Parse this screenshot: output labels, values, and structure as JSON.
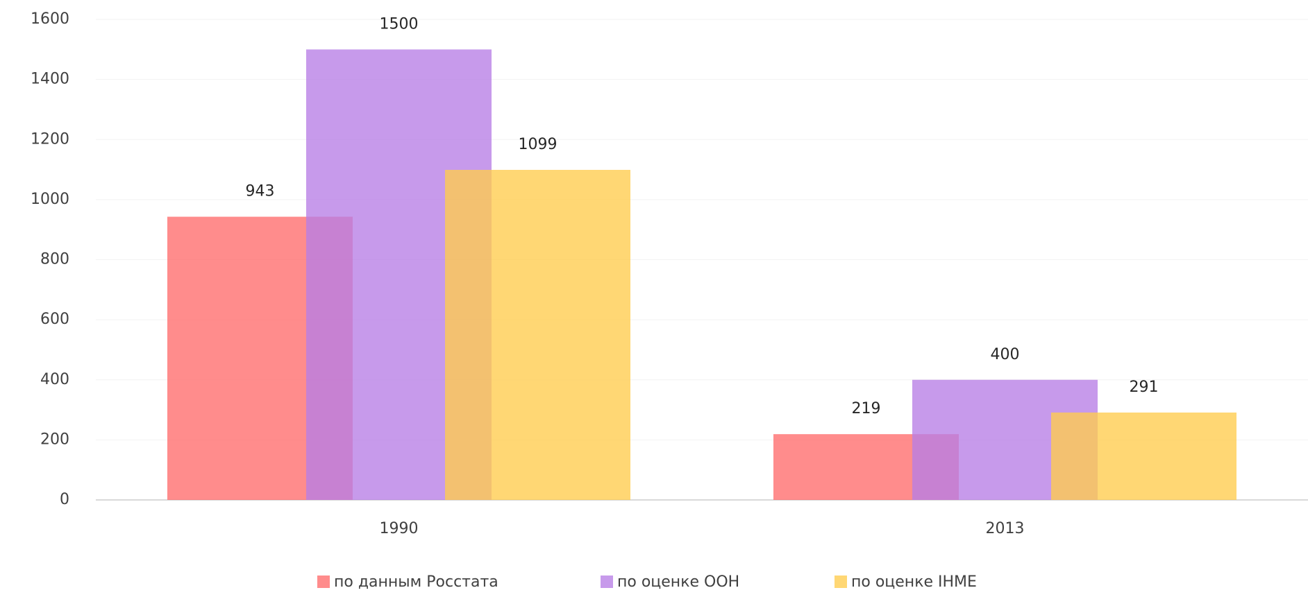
{
  "chart_data": {
    "type": "bar",
    "categories": [
      "1990",
      "2013"
    ],
    "series": [
      {
        "name": "по данным Росстата",
        "color": "#ff6b6b",
        "values": [
          943,
          219
        ]
      },
      {
        "name": "по оценке ООН",
        "color": "#b77ee6",
        "values": [
          1500,
          400
        ]
      },
      {
        "name": "по оценке IHME",
        "color": "#ffcc4d",
        "values": [
          1099,
          291
        ]
      }
    ],
    "ylim": [
      0,
      1600
    ],
    "yticks": [
      0,
      200,
      400,
      600,
      800,
      1000,
      1200,
      1400,
      1600
    ],
    "grid": true,
    "legend": "bottom"
  }
}
